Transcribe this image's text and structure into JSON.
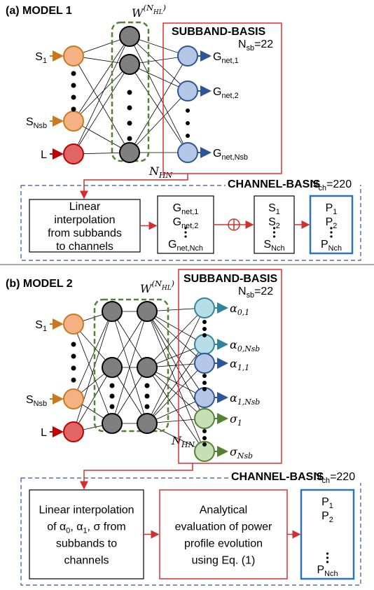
{
  "model1": {
    "title": "(a) MODEL 1",
    "weight_label": [
      {
        "text": "W"
      },
      {
        "sup": "(N"
      },
      {
        "supsub": "HL"
      },
      {
        "sup": ")"
      }
    ],
    "hidden_label": [
      {
        "text": "N"
      },
      {
        "sub": "HN"
      }
    ],
    "inputs": [
      [
        {
          "text": "S"
        },
        {
          "sub": "1"
        }
      ],
      [
        {
          "text": "S"
        },
        {
          "sub": "Nsb"
        }
      ],
      [
        {
          "text": "L"
        }
      ]
    ],
    "subband": {
      "title": "SUBBAND-BASIS",
      "note": [
        {
          "text": "N"
        },
        {
          "sub": "sb"
        },
        {
          "text": "=22"
        }
      ]
    },
    "outputs": [
      [
        {
          "text": "G"
        },
        {
          "sub": "net,1"
        }
      ],
      [
        {
          "text": "G"
        },
        {
          "sub": "net,2"
        }
      ],
      [
        {
          "text": "G"
        },
        {
          "sub": "net,Nsb"
        }
      ]
    ],
    "channel": {
      "title": "CHANNEL-BASIS",
      "note": [
        {
          "text": "N"
        },
        {
          "sub": "ch"
        },
        {
          "text": "=220"
        }
      ],
      "steps": [
        {
          "lines": [
            [
              {
                "text": "Linear"
              }
            ],
            [
              {
                "text": "interpolation"
              }
            ],
            [
              {
                "text": "from subbands"
              }
            ],
            [
              {
                "text": "to channels"
              }
            ]
          ]
        },
        {
          "lines": [
            [
              {
                "text": "G"
              },
              {
                "sub": "net,1"
              }
            ],
            [
              {
                "text": "G"
              },
              {
                "sub": "net,2"
              }
            ],
            [
              {
                "text": "G"
              },
              {
                "sub": "net,Nch"
              }
            ]
          ]
        },
        {
          "lines": [
            [
              {
                "text": "S"
              },
              {
                "sub": "1"
              }
            ],
            [
              {
                "text": "S"
              },
              {
                "sub": "2"
              }
            ],
            [
              {
                "text": "S"
              },
              {
                "sub": "Nch"
              }
            ]
          ]
        },
        {
          "lines": [
            [
              {
                "text": "P"
              },
              {
                "sub": "1"
              }
            ],
            [
              {
                "text": "P"
              },
              {
                "sub": "2"
              }
            ],
            [
              {
                "text": "P"
              },
              {
                "sub": "Nch"
              }
            ]
          ]
        }
      ]
    }
  },
  "model2": {
    "title": "(b) MODEL 2",
    "weight_label": [
      {
        "text": "W"
      },
      {
        "sup": "(N"
      },
      {
        "supsub": "HL"
      },
      {
        "sup": ")"
      }
    ],
    "hidden_label": [
      {
        "text": "N"
      },
      {
        "sub": "HN"
      }
    ],
    "inputs": [
      [
        {
          "text": "S"
        },
        {
          "sub": "1"
        }
      ],
      [
        {
          "text": "S"
        },
        {
          "sub": "Nsb"
        }
      ],
      [
        {
          "text": "L"
        }
      ]
    ],
    "subband": {
      "title": "SUBBAND-BASIS",
      "note": [
        {
          "text": "N"
        },
        {
          "sub": "sb"
        },
        {
          "text": "=22"
        }
      ]
    },
    "outputs": [
      [
        {
          "text": "α"
        },
        {
          "sub": "0,1"
        }
      ],
      [
        {
          "text": "α"
        },
        {
          "sub": "0,Nsb"
        }
      ],
      [
        {
          "text": "α"
        },
        {
          "sub": "1,1"
        }
      ],
      [
        {
          "text": "α"
        },
        {
          "sub": "1,Nsb"
        }
      ],
      [
        {
          "text": "σ"
        },
        {
          "sub": "1"
        }
      ],
      [
        {
          "text": "σ"
        },
        {
          "sub": "Nsb"
        }
      ]
    ],
    "channel": {
      "title": "CHANNEL-BASIS",
      "note": [
        {
          "text": "N"
        },
        {
          "sub": "ch"
        },
        {
          "text": "=220"
        }
      ],
      "steps": [
        {
          "lines": [
            [
              {
                "text": "Linear interpolation"
              }
            ],
            [
              {
                "text": "of "
              },
              {
                "text": "α"
              },
              {
                "sub": "0"
              },
              {
                "text": ", "
              },
              {
                "text": "α"
              },
              {
                "sub": "1"
              },
              {
                "text": ", σ from"
              }
            ],
            [
              {
                "text": "subbands to"
              }
            ],
            [
              {
                "text": "channels"
              }
            ]
          ]
        },
        {
          "lines": [
            [
              {
                "text": "Analytical"
              }
            ],
            [
              {
                "text": "evaluation of power"
              }
            ],
            [
              {
                "text": "profile evolution"
              }
            ],
            [
              {
                "text": "using Eq. (1)"
              }
            ]
          ]
        },
        {
          "lines": [
            [
              {
                "text": "P"
              },
              {
                "sub": "1"
              }
            ],
            [
              {
                "text": "P"
              },
              {
                "sub": "2"
              }
            ],
            [
              {
                "text": "P"
              },
              {
                "sub": "Nch"
              }
            ]
          ]
        }
      ]
    }
  }
}
